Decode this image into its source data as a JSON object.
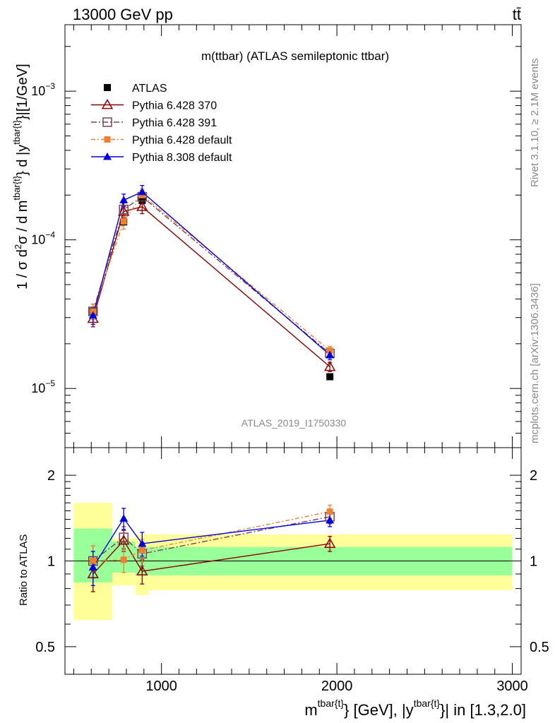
{
  "header": {
    "left": "13000 GeV pp",
    "right": "tt̄"
  },
  "side_text": {
    "rivet": "Rivet 3.1.10, ≥ 2.1M events",
    "source": "mcplots.cern.ch [arXiv:1306.3436]"
  },
  "watermark": "ATLAS_2019_I1750330",
  "chart_data": [
    {
      "type": "scatter",
      "panel": "main",
      "title": "m(ttbar) (ATLAS semileptonic ttbar)",
      "ylabel": "1 / σ d²σ / d m^{tbar{t}} d |y^{tbar{t}}|[1/GeV]",
      "ylabel_parts": {
        "a": "1 / σ d",
        "b": "2",
        "c": "σ / d m",
        "d": "tbar{t}",
        "e": "} d |y",
        "f": "tbar{t}",
        "g": "}|[1/GeV]"
      },
      "yscale": "log",
      "ylim": [
        4e-06,
        0.0028
      ],
      "xlim": [
        450,
        3050
      ],
      "y_ticks": [
        {
          "v": 1e-05,
          "base": "10",
          "exp": "−5"
        },
        {
          "v": 0.0001,
          "base": "10",
          "exp": "−4"
        },
        {
          "v": 0.001,
          "base": "10",
          "exp": "−3"
        }
      ],
      "legend_position": "top-left",
      "series": [
        {
          "name": "ATLAS",
          "color": "#000000",
          "marker": "filled-square",
          "x": [
            610,
            785,
            890,
            1960
          ],
          "y": [
            3.3e-05,
            0.000132,
            0.000184,
            1.2e-05
          ],
          "yerr": [
            0.0,
            0.0,
            0.0,
            0.0
          ]
        },
        {
          "name": "Pythia 6.428 370",
          "color": "#8b0000",
          "marker": "open-triangle",
          "dash": "solid",
          "x": [
            610,
            785,
            890,
            1960
          ],
          "y": [
            2.95e-05,
            0.000155,
            0.000167,
            1.4e-05
          ],
          "yerr": [
            3.5e-06,
            1.5e-05,
            1.7e-05,
            1e-06
          ]
        },
        {
          "name": "Pythia 6.428 391",
          "color": "#7a4055",
          "marker": "open-square",
          "dash": "dashdot",
          "x": [
            610,
            785,
            890,
            1960
          ],
          "y": [
            3.3e-05,
            0.00016,
            0.000195,
            1.72e-05
          ],
          "yerr": [
            4e-06,
            1.7e-05,
            2e-05,
            1.2e-06
          ]
        },
        {
          "name": "Pythia 6.428 default",
          "color": "#f08030",
          "marker": "filled-square-small",
          "dash": "dashdot2",
          "x": [
            610,
            785,
            890,
            1960
          ],
          "y": [
            3.3e-05,
            0.000133,
            0.0002,
            1.8e-05
          ],
          "yerr": [
            4e-06,
            1.5e-05,
            2e-05,
            1.2e-06
          ]
        },
        {
          "name": "Pythia 8.308 default",
          "color": "#0000dd",
          "marker": "filled-triangle",
          "dash": "solid",
          "x": [
            610,
            785,
            890,
            1960
          ],
          "y": [
            3.1e-05,
            0.000185,
            0.00021,
            1.68e-05
          ],
          "yerr": [
            4e-06,
            1.8e-05,
            2.2e-05,
            1.2e-06
          ]
        }
      ]
    },
    {
      "type": "scatter",
      "panel": "ratio",
      "ylabel": "Ratio to ATLAS",
      "xlabel": "m^{tbar{t}} [GeV], |y^{tbar{t}}| in [1.3,2.0]",
      "xlabel_parts": {
        "a": "m",
        "b": "tbar{t}",
        "c": "} [GeV], |y",
        "d": "tbar{t}",
        "e": "}| in [1.3,2.0]"
      },
      "yscale": "log",
      "ylim": [
        0.4,
        2.5
      ],
      "xlim": [
        450,
        3050
      ],
      "x_ticks": [
        1000,
        2000,
        3000
      ],
      "x_tick_labels": [
        "1000",
        "2000",
        "3000"
      ],
      "y_ticks": [
        0.5,
        1,
        2
      ],
      "y_tick_labels": [
        "0.5",
        "1",
        "2"
      ],
      "reference_line": 1,
      "uncertainty_bands": [
        {
          "x0": 500,
          "x1": 720,
          "inner": [
            0.84,
            1.3
          ],
          "outer": [
            0.62,
            1.6
          ]
        },
        {
          "x0": 720,
          "x1": 850,
          "inner": [
            0.91,
            1.17
          ],
          "outer": [
            0.82,
            1.2
          ]
        },
        {
          "x0": 850,
          "x1": 930,
          "inner": [
            0.89,
            1.12
          ],
          "outer": [
            0.76,
            1.24
          ]
        },
        {
          "x0": 930,
          "x1": 3000,
          "inner": [
            0.89,
            1.12
          ],
          "outer": [
            0.79,
            1.24
          ]
        }
      ],
      "band_colors": {
        "inner": "#99ff99",
        "outer": "#ffff99"
      },
      "series": [
        {
          "name": "Pythia 6.428 370",
          "color": "#8b0000",
          "marker": "open-triangle",
          "dash": "solid",
          "x": [
            610,
            785,
            890,
            1960
          ],
          "y": [
            0.9,
            1.18,
            0.92,
            1.15
          ],
          "yerr": [
            0.12,
            0.1,
            0.09,
            0.07
          ]
        },
        {
          "name": "Pythia 6.428 391",
          "color": "#7a4055",
          "marker": "open-square",
          "dash": "dashdot",
          "x": [
            610,
            785,
            890,
            1960
          ],
          "y": [
            1.0,
            1.21,
            1.06,
            1.43
          ],
          "yerr": [
            0.13,
            0.11,
            0.1,
            0.08
          ]
        },
        {
          "name": "Pythia 6.428 default",
          "color": "#f08030",
          "marker": "filled-square-small",
          "dash": "dashdot2",
          "x": [
            610,
            785,
            890,
            1960
          ],
          "y": [
            1.0,
            1.01,
            1.09,
            1.49
          ],
          "yerr": [
            0.13,
            0.1,
            0.1,
            0.08
          ]
        },
        {
          "name": "Pythia 8.308 default",
          "color": "#0000dd",
          "marker": "filled-triangle",
          "dash": "solid",
          "x": [
            610,
            785,
            890,
            1960
          ],
          "y": [
            0.95,
            1.41,
            1.15,
            1.39
          ],
          "yerr": [
            0.13,
            0.12,
            0.11,
            0.07
          ]
        }
      ]
    }
  ]
}
